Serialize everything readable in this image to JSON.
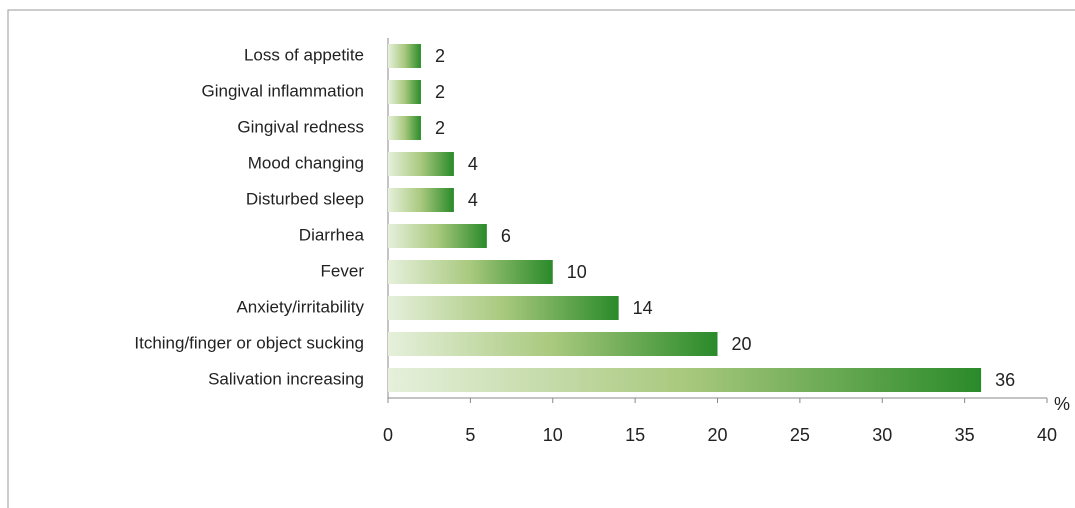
{
  "chart_data": {
    "type": "bar",
    "orientation": "horizontal",
    "categories": [
      "Loss of appetite",
      "Gingival inflammation",
      "Gingival redness",
      "Mood changing",
      "Disturbed sleep",
      "Diarrhea",
      "Fever",
      "Anxiety/irritability",
      "Itching/finger or object sucking",
      "Salivation increasing"
    ],
    "values": [
      2,
      2,
      2,
      4,
      4,
      6,
      10,
      14,
      20,
      36
    ],
    "colors": [
      "#e6f0dc",
      "#a9c97e",
      "#2a8a2a"
    ],
    "x_label": "%",
    "xlim": [
      0,
      40
    ],
    "xticks": [
      0,
      5,
      10,
      15,
      20,
      25,
      30,
      35,
      40
    ]
  }
}
